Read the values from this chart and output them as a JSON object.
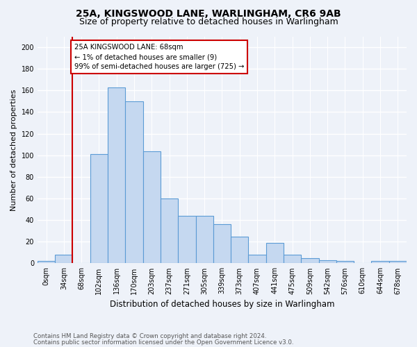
{
  "title_line1": "25A, KINGSWOOD LANE, WARLINGHAM, CR6 9AB",
  "title_line2": "Size of property relative to detached houses in Warlingham",
  "xlabel": "Distribution of detached houses by size in Warlingham",
  "ylabel": "Number of detached properties",
  "footer_line1": "Contains HM Land Registry data © Crown copyright and database right 2024.",
  "footer_line2": "Contains public sector information licensed under the Open Government Licence v3.0.",
  "bin_labels": [
    "0sqm",
    "34sqm",
    "68sqm",
    "102sqm",
    "136sqm",
    "170sqm",
    "203sqm",
    "237sqm",
    "271sqm",
    "305sqm",
    "339sqm",
    "373sqm",
    "407sqm",
    "441sqm",
    "475sqm",
    "509sqm",
    "542sqm",
    "576sqm",
    "610sqm",
    "644sqm",
    "678sqm"
  ],
  "bar_values": [
    2,
    8,
    0,
    101,
    163,
    150,
    104,
    60,
    44,
    44,
    36,
    25,
    8,
    19,
    8,
    5,
    3,
    2,
    0,
    2,
    2
  ],
  "bar_color": "#c5d8f0",
  "bar_edge_color": "#5b9bd5",
  "highlight_color": "#cc0000",
  "annotation_text": "25A KINGSWOOD LANE: 68sqm\n← 1% of detached houses are smaller (9)\n99% of semi-detached houses are larger (725) →",
  "annotation_box_color": "#ffffff",
  "annotation_box_edge_color": "#cc0000",
  "ylim": [
    0,
    210
  ],
  "yticks": [
    0,
    20,
    40,
    60,
    80,
    100,
    120,
    140,
    160,
    180,
    200
  ],
  "bg_color": "#eef2f9",
  "grid_color": "#ffffff",
  "title_fontsize": 10,
  "subtitle_fontsize": 9,
  "axis_label_fontsize": 8.5,
  "tick_fontsize": 7,
  "ylabel_fontsize": 8
}
